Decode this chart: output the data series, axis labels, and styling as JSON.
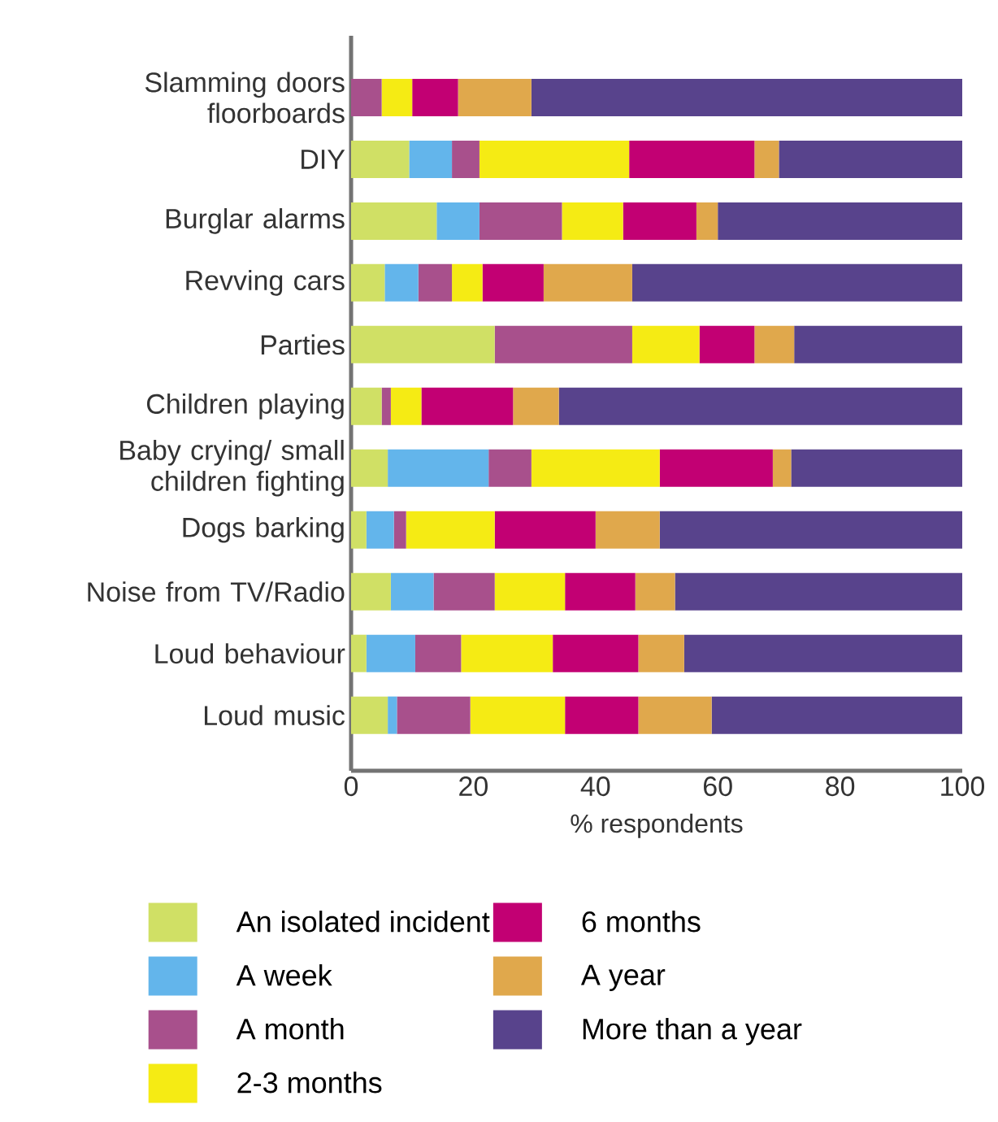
{
  "chart_data": {
    "type": "bar",
    "orientation": "horizontal",
    "stacked": true,
    "categories": [
      "Slamming doors floorboards",
      "DIY",
      "Burglar alarms",
      "Revving cars",
      "Parties",
      "Children playing",
      "Baby crying/ small children fighting",
      "Dogs barking",
      "Noise from TV/Radio",
      "Loud behaviour",
      "Loud music"
    ],
    "xlabel": "% respondents",
    "xlim": [
      0,
      100
    ],
    "xticks": [
      0,
      20,
      40,
      60,
      80,
      100
    ],
    "legend": "bottom",
    "series": [
      {
        "name": "An isolated incident",
        "color": "#d0e065",
        "values": [
          0,
          9.5,
          14,
          5.5,
          23.5,
          5,
          6,
          2.5,
          6.5,
          2.5,
          6
        ]
      },
      {
        "name": "A week",
        "color": "#63b5eb",
        "values": [
          0,
          7,
          7,
          5.5,
          0,
          0,
          16.5,
          4.5,
          7,
          8,
          1.5
        ]
      },
      {
        "name": "A month",
        "color": "#a8508c",
        "values": [
          5,
          4.5,
          13.5,
          5.5,
          22.5,
          1.5,
          7,
          2,
          10,
          7.5,
          12
        ]
      },
      {
        "name": "2-3 months",
        "color": "#f5eb14",
        "values": [
          5,
          24.5,
          10,
          5,
          11,
          5,
          21,
          14.5,
          11.5,
          15,
          15.5
        ]
      },
      {
        "name": "6 months",
        "color": "#c20073",
        "values": [
          7.5,
          20.5,
          12,
          10,
          9,
          15,
          18.5,
          16.5,
          11.5,
          14,
          12
        ]
      },
      {
        "name": "A year",
        "color": "#e0a84c",
        "values": [
          12,
          4,
          3.5,
          14.5,
          6.5,
          7.5,
          3,
          10.5,
          6.5,
          7.5,
          12
        ]
      },
      {
        "name": "More than a year",
        "color": "#58438c",
        "values": [
          70.5,
          30,
          40,
          54,
          27.5,
          66,
          28,
          49.5,
          47,
          45.5,
          41
        ]
      }
    ]
  }
}
